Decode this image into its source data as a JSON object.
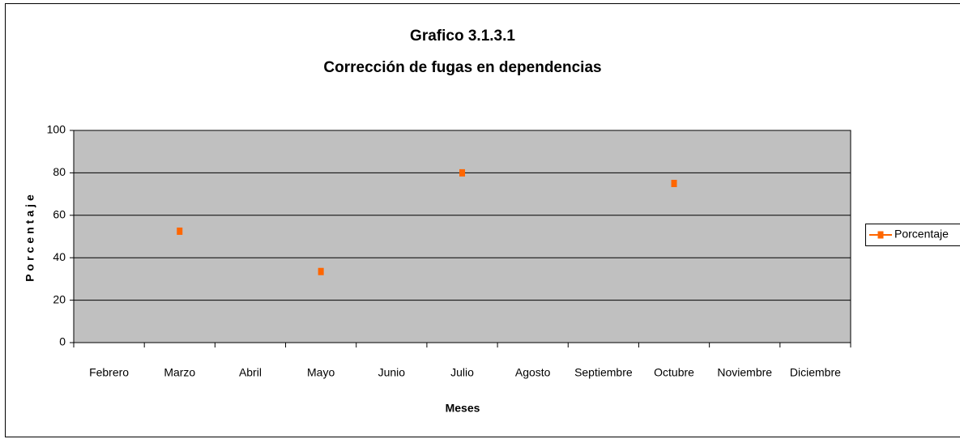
{
  "chart_data": {
    "type": "line",
    "title": "Grafico 3.1.3.1",
    "subtitle": "Corrección de fugas en dependencias",
    "x_label": "Meses",
    "y_label": "Porcentaje",
    "categories": [
      "Febrero",
      "Marzo",
      "Abril",
      "Mayo",
      "Junio",
      "Julio",
      "Agosto",
      "Septiembre",
      "Octubre",
      "Noviembre",
      "Diciembre"
    ],
    "series": [
      {
        "name": "Porcentaje",
        "color": "#ff6600",
        "values": [
          null,
          52.5,
          null,
          33.5,
          null,
          80,
          null,
          null,
          75,
          null,
          null
        ]
      }
    ],
    "ylim": [
      0,
      100
    ],
    "yticks": [
      0,
      20,
      40,
      60,
      80,
      100
    ],
    "grid": true,
    "plot_background": "#c0c0c0",
    "legend": "right"
  }
}
